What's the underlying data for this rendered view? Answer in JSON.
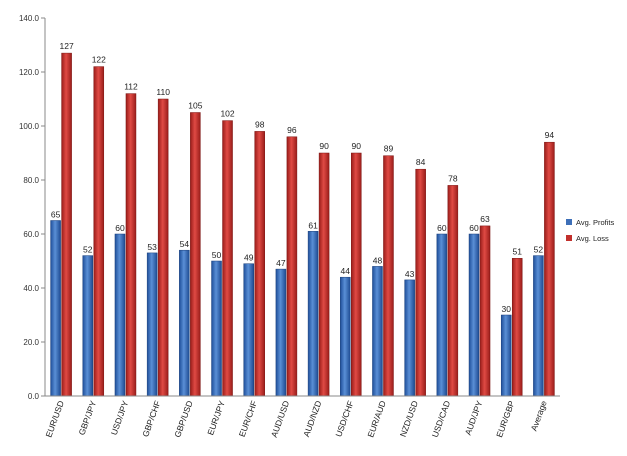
{
  "chart_data": {
    "type": "bar",
    "categories": [
      "EUR/USD",
      "GBP/JPY",
      "USD/JPY",
      "GBP/CHF",
      "GBP/USD",
      "EUR/JPY",
      "EUR/CHF",
      "AUD/USD",
      "AUD/NZD",
      "USD/CHF",
      "EUR/AUD",
      "NZD/USD",
      "USD/CAD",
      "AUD/JPY",
      "EUR/GBP",
      "Average"
    ],
    "series": [
      {
        "name": "Avg. Profits",
        "values": [
          65,
          52,
          60,
          53,
          54,
          50,
          49,
          47,
          61,
          44,
          48,
          43,
          60,
          60,
          30,
          52
        ],
        "color": "#3d6fb8"
      },
      {
        "name": "Avg. Loss",
        "values": [
          127,
          122,
          112,
          110,
          105,
          102,
          98,
          96,
          90,
          90,
          89,
          84,
          78,
          63,
          51,
          94
        ],
        "color": "#c2302c"
      }
    ],
    "value_labels": {
      "profits": [
        "65",
        "52",
        "60",
        "53",
        "54",
        "50",
        "49",
        "47",
        "61",
        "44",
        "48",
        "43",
        "60",
        "60",
        "30",
        "52"
      ],
      "loss": [
        "127",
        "122",
        "112",
        "110",
        "105",
        "102",
        "98",
        "96",
        "90",
        "90",
        "89",
        "84",
        "78",
        "63",
        "51",
        "94"
      ]
    },
    "ylim": [
      0,
      140
    ],
    "yticks": [
      "0.0",
      "20.0",
      "40.0",
      "60.0",
      "80.0",
      "100.0",
      "120.0",
      "140.0"
    ],
    "grid": false,
    "legend_position": "right"
  }
}
